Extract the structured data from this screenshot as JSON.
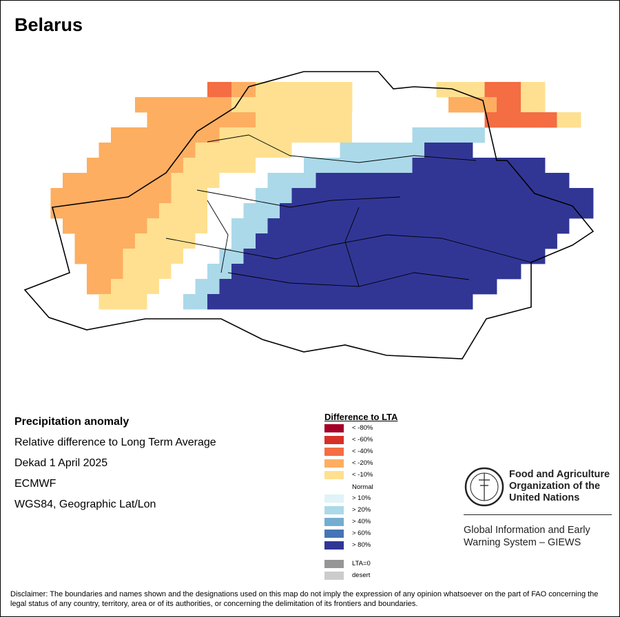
{
  "map": {
    "title": "Belarus",
    "grid": {
      "rows": [
        "              IIRRFFFFFFFF       FFFFIIIFF      ",
        "        RRRRRRRRFFFFFFFFFF        RRRRIIFF     ",
        "         RRRRRRRRRFFFFFFFFNNN        IIIIIIFFNNN    ",
        "      RRRRRRRRRFFFFFFFFFFFNNNNNPPPPPP   ",
        "     RRRRRRRRFFFFFFFFNNNNPPPPPPPDDDD  ",
        "    RRRRRRRRFFFFFFNNNNPPPPPPPPPDDDDDDDDDDD   ",
        "  RRRRRRRRRFFFFNNNNPPPPDDDDDDDDDDDDDDDDDDDDD ",
        " RRRRRRRRRRFFFNNNNPPPDDDDDDDDDDDDDDDDDDDDDDDDD",
        " RRRRRRRRRFFFFNNNPPPDDDDDDDDDDDDDDDDDDDDDDDDDD",
        "  RRRRRRRFFFFFNNPPPDDDDDDDDDDDDDDDDDDDDDDDDD ",
        "   RRRRRFFFFFNNNPPDDDDDDDDDDDDDDDDDDDDDDDDD  ",
        "   RRRRFFFFFNNNPPDDDDDDDDDDDDDDDDDDDDDDDDD   ",
        "    RRRFFFFNNNPPDDDDDDDDDDDDDDDDDDDDDDDD    ",
        "    RRFFFFNNNPPDDDDDDDDDDDDDDDDDDDDDDD      ",
        "     FFFFNNNPPDDDDDDDDDDDDDDDDDDDDDD        "
      ],
      "note": ""
    }
  },
  "meta": {
    "heading": "Precipitation anomaly",
    "line1": "Relative difference to Long Term Average",
    "line2": "Dekad 1 April 2025",
    "line3": "ECMWF",
    "line4": "WGS84, Geographic Lat/Lon"
  },
  "legend": {
    "title": "Difference to LTA",
    "items": [
      {
        "label": "< -80%",
        "color": "#a50026"
      },
      {
        "label": "< -60%",
        "color": "#d73027"
      },
      {
        "label": "< -40%",
        "color": "#f46d43"
      },
      {
        "label": "< -20%",
        "color": "#fdae61"
      },
      {
        "label": "< -10%",
        "color": "#fee090"
      },
      {
        "label": "Normal",
        "color": "#ffffff"
      },
      {
        "label": "> 10%",
        "color": "#e0f3f8"
      },
      {
        "label": "> 20%",
        "color": "#abd9e9"
      },
      {
        "label": "> 40%",
        "color": "#74add1"
      },
      {
        "label": "> 60%",
        "color": "#4575b4"
      },
      {
        "label": "> 80%",
        "color": "#313695"
      },
      {
        "label": "LTA=0",
        "color": "#969696"
      },
      {
        "label": "desert",
        "color": "#cccccc"
      }
    ]
  },
  "logo": {
    "org_line1": "Food and Agriculture",
    "org_line2": "Organization of the",
    "org_line3": "United Nations",
    "giews_line1": "Global Information and Early",
    "giews_line2": "Warning System – GIEWS"
  },
  "disclaimer": "Disclaimer: The boundaries and names shown and the designations used on this map do not imply the expression of any opinion whatsoever on the part of FAO concerning the legal status of any country, territory, area or of its authorities, or concerning the delimitation of its frontiers and boundaries."
}
